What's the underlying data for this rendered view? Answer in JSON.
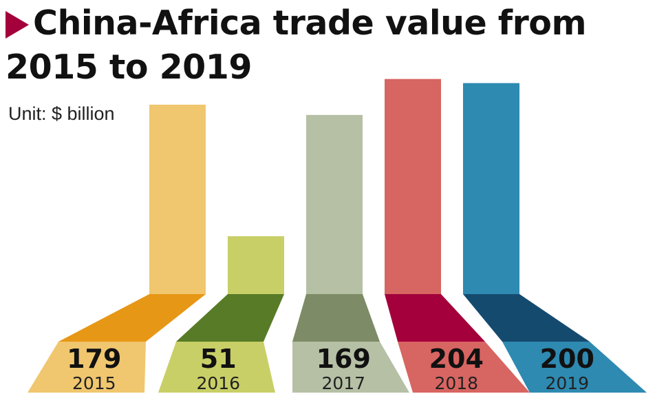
{
  "title_line1": "China-Africa trade value from",
  "title_line2": "2015 to 2019",
  "unit": "Unit: $ billion",
  "colors": {
    "marker": "#a3003c",
    "title": "#111111"
  },
  "chart_data": {
    "type": "bar",
    "title": "China-Africa trade value from 2015 to 2019",
    "unit": "$ billion",
    "categories": [
      "2015",
      "2016",
      "2017",
      "2018",
      "2019"
    ],
    "values": [
      179,
      51,
      169,
      204,
      200
    ],
    "value_labels": [
      "179",
      "51",
      "169",
      "204",
      "200"
    ],
    "series_colors": {
      "light": [
        "#f0c66f",
        "#c8cf67",
        "#b5c0a5",
        "#d76561",
        "#2e8ab1"
      ],
      "dark": [
        "#e79716",
        "#577b26",
        "#7d8b66",
        "#a3003c",
        "#154a6f"
      ]
    }
  }
}
